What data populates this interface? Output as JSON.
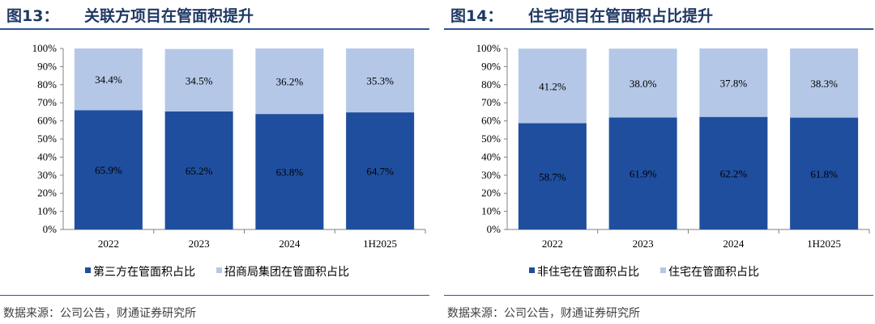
{
  "colors": {
    "dark": "#1f4e9e",
    "light": "#b4c7e7",
    "title": "#1f3864",
    "rule": "#2f5496"
  },
  "panels": [
    {
      "fig_number": "图13：",
      "title_text": "关联方项目在管面积提升",
      "source": "数据来源：公司公告，财通证券研究所"
    },
    {
      "fig_number": "图14：",
      "title_text": "住宅项目在管面积占比提升",
      "source": "数据来源：公司公告，财通证券研究所"
    }
  ],
  "chart_data": [
    {
      "type": "bar",
      "stacked": true,
      "percent": true,
      "categories": [
        "2022",
        "2023",
        "2024",
        "1H2025"
      ],
      "yticks": [
        "0%",
        "10%",
        "20%",
        "30%",
        "40%",
        "50%",
        "60%",
        "70%",
        "80%",
        "90%",
        "100%"
      ],
      "ylim": [
        0,
        100
      ],
      "grid": false,
      "legend_position": "bottom",
      "series": [
        {
          "name": "第三方在管面积占比",
          "color": "#1f4e9e",
          "values": [
            65.9,
            65.2,
            63.8,
            64.7
          ],
          "labels": [
            "65.9%",
            "65.2%",
            "63.8%",
            "64.7%"
          ]
        },
        {
          "name": "招商局集团在管面积占比",
          "color": "#b4c7e7",
          "values": [
            34.4,
            34.5,
            36.2,
            35.3
          ],
          "labels": [
            "34.4%",
            "34.5%",
            "36.2%",
            "35.3%"
          ]
        }
      ]
    },
    {
      "type": "bar",
      "stacked": true,
      "percent": true,
      "categories": [
        "2022",
        "2023",
        "2024",
        "1H2025"
      ],
      "yticks": [
        "0%",
        "10%",
        "20%",
        "30%",
        "40%",
        "50%",
        "60%",
        "70%",
        "80%",
        "90%",
        "100%"
      ],
      "ylim": [
        0,
        100
      ],
      "grid": false,
      "legend_position": "bottom",
      "series": [
        {
          "name": "非住宅在管面积占比",
          "color": "#1f4e9e",
          "values": [
            58.7,
            61.9,
            62.2,
            61.8
          ],
          "labels": [
            "58.7%",
            "61.9%",
            "62.2%",
            "61.8%"
          ]
        },
        {
          "name": "住宅在管面积占比",
          "color": "#b4c7e7",
          "values": [
            41.2,
            38.0,
            37.8,
            38.3
          ],
          "labels": [
            "41.2%",
            "38.0%",
            "37.8%",
            "38.3%"
          ]
        }
      ]
    }
  ]
}
